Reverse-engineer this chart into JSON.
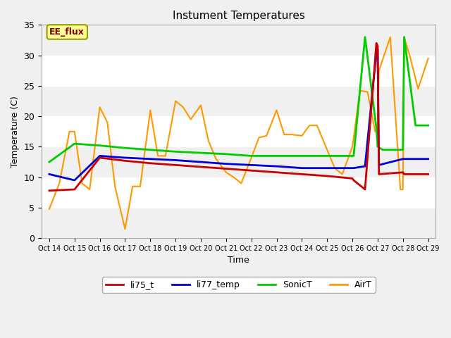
{
  "title": "Instument Temperatures",
  "xlabel": "Time",
  "ylabel": "Temperature (C)",
  "ylim": [
    0,
    35
  ],
  "background_color": "#f0f0f0",
  "x_tick_labels": [
    "Oct 14",
    "Oct 15",
    "Oct 16",
    "Oct 17",
    "Oct 18",
    "Oct 19",
    "Oct 20",
    "Oct 21",
    "Oct 22",
    "Oct 23",
    "Oct 24",
    "Oct 25",
    "Oct 26",
    "Oct 27",
    "Oct 28",
    "Oct 29"
  ],
  "annotation_text": "EE_flux",
  "li75_t_color": "#cc0000",
  "li77_temp_color": "#0000dd",
  "SonicT_color": "#00cc00",
  "AirT_color": "#ff9900",
  "li75_x": [
    0,
    1,
    2,
    3,
    4,
    5,
    6,
    7,
    8,
    9,
    10,
    11,
    12,
    12.05,
    12.5,
    12.95,
    13,
    13.05,
    14,
    14.05,
    14.5,
    15
  ],
  "li75_y": [
    7.8,
    8.0,
    13.2,
    12.7,
    12.3,
    12.0,
    11.7,
    11.4,
    11.1,
    10.8,
    10.5,
    10.2,
    9.8,
    9.5,
    8.0,
    32.0,
    31.5,
    10.5,
    10.8,
    10.5,
    10.5,
    10.5
  ],
  "li77_x": [
    0,
    1,
    2,
    3,
    4,
    5,
    6,
    7,
    8,
    9,
    10,
    11,
    12,
    12.05,
    12.5,
    12.95,
    13,
    13.05,
    14,
    14.05,
    14.5,
    15
  ],
  "li77_y": [
    10.5,
    9.5,
    13.5,
    13.2,
    13.0,
    12.8,
    12.5,
    12.2,
    12.0,
    11.8,
    11.5,
    11.5,
    11.5,
    11.5,
    11.8,
    30.5,
    31.0,
    12.0,
    13.0,
    13.0,
    13.0,
    13.0
  ],
  "sonicT_x": [
    0,
    1,
    2,
    3,
    4,
    5,
    6,
    7,
    8,
    9,
    10,
    11,
    12,
    12.05,
    12.5,
    12.95,
    13,
    13.2,
    13.5,
    14,
    14.05,
    14.5,
    15
  ],
  "sonicT_y": [
    12.5,
    15.5,
    15.2,
    14.8,
    14.5,
    14.2,
    14.0,
    13.8,
    13.5,
    13.5,
    13.5,
    13.5,
    13.5,
    13.5,
    33.0,
    18.0,
    15.0,
    14.5,
    14.5,
    14.5,
    33.0,
    18.5,
    18.5
  ],
  "airT_x": [
    0,
    0.4,
    0.8,
    1,
    1.3,
    1.6,
    2,
    2.3,
    2.6,
    3,
    3.3,
    3.6,
    4,
    4.3,
    4.6,
    5,
    5.3,
    5.6,
    6,
    6.3,
    6.6,
    7,
    7.3,
    7.6,
    8,
    8.3,
    8.6,
    9,
    9.3,
    9.6,
    10,
    10.3,
    10.6,
    11,
    11.3,
    11.6,
    12,
    12.3,
    12.6,
    12.9,
    13,
    13.05,
    13.5,
    13.9,
    14,
    14.05,
    14.3,
    14.6,
    15
  ],
  "airT_y": [
    4.8,
    9.0,
    17.5,
    17.5,
    9.0,
    8.0,
    21.5,
    19.0,
    8.5,
    1.5,
    8.5,
    8.5,
    21.0,
    13.5,
    13.5,
    22.5,
    21.5,
    19.5,
    21.8,
    16.0,
    13.0,
    10.8,
    10.0,
    9.0,
    13.2,
    16.5,
    16.8,
    21.0,
    17.0,
    17.0,
    16.8,
    18.5,
    18.5,
    14.5,
    11.5,
    10.5,
    15.0,
    24.2,
    24.0,
    17.5,
    17.5,
    27.5,
    33.0,
    8.0,
    8.0,
    33.0,
    29.5,
    24.5,
    29.5
  ]
}
